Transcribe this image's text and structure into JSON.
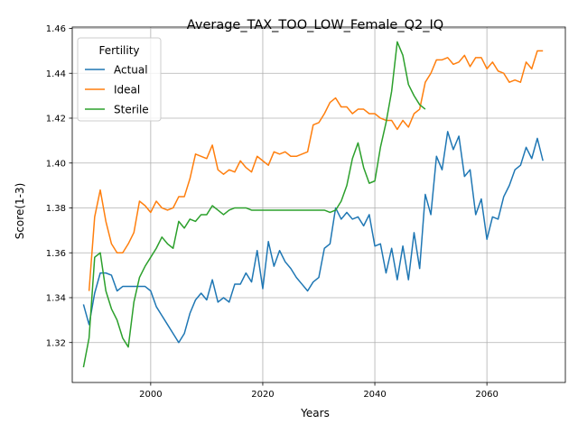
{
  "chart_data": {
    "type": "line",
    "title": "Average_TAX_TOO_LOW_Female_Q2_IQ",
    "xlabel": "Years",
    "ylabel": "Score(1-3)",
    "xlim": [
      1986,
      2074
    ],
    "ylim": [
      1.3022,
      1.4606
    ],
    "xticks": [
      2000,
      2020,
      2040,
      2060
    ],
    "yticks": [
      1.32,
      1.34,
      1.36,
      1.38,
      1.4,
      1.42,
      1.44,
      1.46
    ],
    "ytick_labels": [
      "1.32",
      "1.34",
      "1.36",
      "1.38",
      "1.40",
      "1.42",
      "1.44",
      "1.46"
    ],
    "grid": true,
    "legend": {
      "title": "Fertility",
      "placement": "top-left"
    },
    "series": [
      {
        "name": "Actual",
        "color": "#1f77b4",
        "x": [
          1988,
          1989,
          1990,
          1991,
          1992,
          1993,
          1994,
          1995,
          1996,
          1997,
          1998,
          1999,
          2000,
          2001,
          2002,
          2003,
          2004,
          2005,
          2006,
          2007,
          2008,
          2009,
          2010,
          2011,
          2012,
          2013,
          2014,
          2015,
          2016,
          2017,
          2018,
          2019,
          2020,
          2021,
          2022,
          2023,
          2024,
          2025,
          2026,
          2027,
          2028,
          2029,
          2030,
          2031,
          2032,
          2033,
          2034,
          2035,
          2036,
          2037,
          2038,
          2039,
          2040,
          2041,
          2042,
          2043,
          2044,
          2045,
          2046,
          2047,
          2048,
          2049,
          2050,
          2051,
          2052,
          2053,
          2054,
          2055,
          2056,
          2057,
          2058,
          2059,
          2060,
          2061,
          2062,
          2063,
          2064,
          2065,
          2066,
          2067,
          2068,
          2069,
          2070
        ],
        "values": [
          1.337,
          1.328,
          1.342,
          1.351,
          1.351,
          1.35,
          1.343,
          1.345,
          1.345,
          1.345,
          1.345,
          1.345,
          1.343,
          1.336,
          1.332,
          1.328,
          1.324,
          1.32,
          1.324,
          1.333,
          1.339,
          1.342,
          1.339,
          1.348,
          1.338,
          1.34,
          1.338,
          1.346,
          1.346,
          1.351,
          1.347,
          1.361,
          1.344,
          1.365,
          1.354,
          1.361,
          1.356,
          1.353,
          1.349,
          1.346,
          1.343,
          1.347,
          1.349,
          1.362,
          1.364,
          1.38,
          1.375,
          1.378,
          1.375,
          1.376,
          1.372,
          1.377,
          1.363,
          1.364,
          1.351,
          1.362,
          1.348,
          1.363,
          1.348,
          1.369,
          1.353,
          1.386,
          1.377,
          1.403,
          1.397,
          1.414,
          1.406,
          1.412,
          1.394,
          1.397,
          1.377,
          1.384,
          1.366,
          1.376,
          1.375,
          1.385,
          1.39,
          1.397,
          1.399,
          1.407,
          1.402,
          1.411,
          1.401
        ]
      },
      {
        "name": "Ideal",
        "color": "#ff7f0e",
        "x": [
          1989,
          1990,
          1991,
          1992,
          1993,
          1994,
          1995,
          1996,
          1997,
          1998,
          1999,
          2000,
          2001,
          2002,
          2003,
          2004,
          2005,
          2006,
          2007,
          2008,
          2009,
          2010,
          2011,
          2012,
          2013,
          2014,
          2015,
          2016,
          2017,
          2018,
          2019,
          2020,
          2021,
          2022,
          2023,
          2024,
          2025,
          2026,
          2027,
          2028,
          2029,
          2030,
          2031,
          2032,
          2033,
          2034,
          2035,
          2036,
          2037,
          2038,
          2039,
          2040,
          2041,
          2042,
          2043,
          2044,
          2045,
          2046,
          2047,
          2048,
          2049,
          2050,
          2051,
          2052,
          2053,
          2054,
          2055,
          2056,
          2057,
          2058,
          2059,
          2060,
          2061,
          2062,
          2063,
          2064,
          2065,
          2066,
          2067,
          2068,
          2069,
          2070
        ],
        "values": [
          1.343,
          1.376,
          1.388,
          1.374,
          1.364,
          1.36,
          1.36,
          1.364,
          1.369,
          1.383,
          1.381,
          1.378,
          1.383,
          1.38,
          1.379,
          1.38,
          1.385,
          1.385,
          1.393,
          1.404,
          1.403,
          1.402,
          1.408,
          1.397,
          1.395,
          1.397,
          1.396,
          1.401,
          1.398,
          1.396,
          1.403,
          1.401,
          1.399,
          1.405,
          1.404,
          1.405,
          1.403,
          1.403,
          1.404,
          1.405,
          1.417,
          1.418,
          1.422,
          1.427,
          1.429,
          1.425,
          1.425,
          1.422,
          1.424,
          1.424,
          1.422,
          1.422,
          1.42,
          1.419,
          1.419,
          1.415,
          1.419,
          1.416,
          1.422,
          1.424,
          1.436,
          1.44,
          1.446,
          1.446,
          1.447,
          1.444,
          1.445,
          1.448,
          1.443,
          1.447,
          1.447,
          1.442,
          1.445,
          1.441,
          1.44,
          1.436,
          1.437,
          1.436,
          1.445,
          1.442,
          1.45,
          1.45
        ]
      },
      {
        "name": "Sterile",
        "color": "#2ca02c",
        "x": [
          1988,
          1989,
          1990,
          1991,
          1992,
          1993,
          1994,
          1995,
          1996,
          1997,
          1998,
          1999,
          2000,
          2001,
          2002,
          2003,
          2004,
          2005,
          2006,
          2007,
          2008,
          2009,
          2010,
          2011,
          2012,
          2013,
          2014,
          2015,
          2016,
          2017,
          2018,
          2019,
          2020,
          2021,
          2022,
          2023,
          2024,
          2025,
          2026,
          2027,
          2028,
          2029,
          2030,
          2031,
          2032,
          2033,
          2034,
          2035,
          2036,
          2037,
          2038,
          2039,
          2040,
          2041,
          2042,
          2043,
          2044,
          2045,
          2046,
          2047,
          2048,
          2049
        ],
        "values": [
          1.309,
          1.322,
          1.358,
          1.36,
          1.343,
          1.335,
          1.33,
          1.322,
          1.318,
          1.338,
          1.349,
          1.354,
          1.358,
          1.362,
          1.367,
          1.364,
          1.362,
          1.374,
          1.371,
          1.375,
          1.374,
          1.377,
          1.377,
          1.381,
          1.379,
          1.377,
          1.379,
          1.38,
          1.38,
          1.38,
          1.379,
          1.379,
          1.379,
          1.379,
          1.379,
          1.379,
          1.379,
          1.379,
          1.379,
          1.379,
          1.379,
          1.379,
          1.379,
          1.379,
          1.378,
          1.379,
          1.383,
          1.39,
          1.402,
          1.409,
          1.398,
          1.391,
          1.392,
          1.407,
          1.418,
          1.432,
          1.454,
          1.448,
          1.435,
          1.43,
          1.426,
          1.424
        ]
      }
    ]
  }
}
